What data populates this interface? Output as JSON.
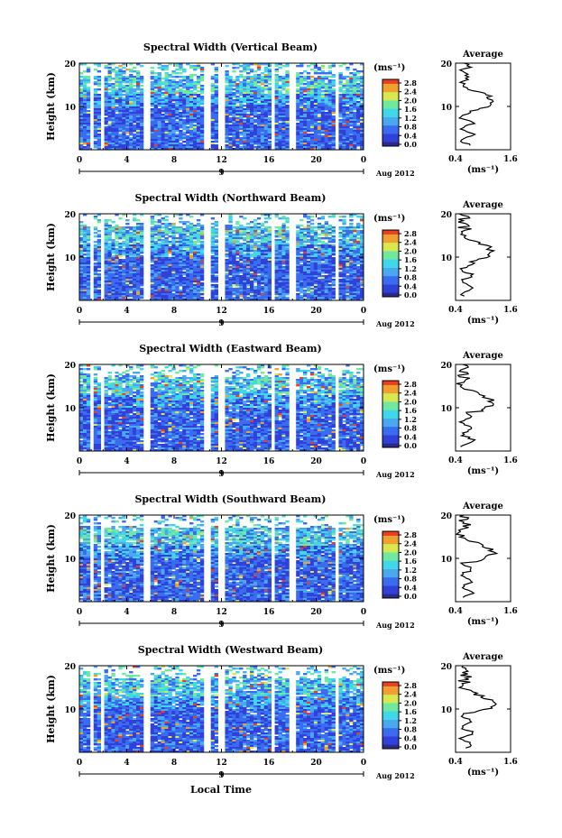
{
  "chart_data": [
    {
      "type": "heatmap",
      "title": "Spectral Width (Vertical Beam)",
      "beam": "vertical",
      "avg_title": "Average",
      "avg_xlabel": "(ms⁻¹)"
    },
    {
      "type": "heatmap",
      "title": "Spectral Width (Northward Beam)",
      "beam": "north",
      "avg_title": "Average",
      "avg_xlabel": "(ms⁻¹)"
    },
    {
      "type": "heatmap",
      "title": "Spectral Width (Eastward Beam)",
      "beam": "east",
      "avg_title": "Average",
      "avg_xlabel": "(ms⁻¹)"
    },
    {
      "type": "heatmap",
      "title": "Spectral Width (Southward Beam)",
      "beam": "south",
      "avg_title": "Average",
      "avg_xlabel": "(ms⁻¹)"
    },
    {
      "type": "heatmap",
      "title": "Spectral Width (Westward Beam)",
      "beam": "west",
      "avg_title": "Average",
      "avg_xlabel": "(ms⁻¹)"
    }
  ],
  "common": {
    "ylabel": "Height (km)",
    "y_ticks": [
      10,
      20
    ],
    "ylim": [
      0,
      20
    ],
    "x_ticks": [
      "0",
      "4",
      "8",
      "12",
      "16",
      "20",
      "0"
    ],
    "xlim": [
      0,
      24
    ],
    "date_mark": "9",
    "date_label": "Aug 2012",
    "colorbar_unit": "(ms⁻¹)",
    "colorbar_ticks": [
      "2.8",
      "2.4",
      "2.0",
      "1.6",
      "1.2",
      "0.8",
      "0.4",
      "0.0"
    ],
    "colorbar_range": [
      0,
      3.0
    ],
    "avg_x_ticks": [
      "0.4",
      "1.6"
    ],
    "avg_xlim": [
      0.4,
      1.6
    ],
    "avg_y_ticks": [
      10,
      20
    ],
    "xlabel": "Local Time",
    "data_gaps_hours": [
      [
        0.8,
        1.2
      ],
      [
        1.7,
        2.2
      ],
      [
        5.5,
        5.9
      ],
      [
        10.5,
        11.0
      ],
      [
        11.7,
        12.2
      ],
      [
        16.3,
        16.6
      ],
      [
        17.8,
        18.2
      ],
      [
        21.5,
        21.8
      ]
    ]
  },
  "colors": {
    "cmap": [
      "#2a2a8a",
      "#3040d8",
      "#3a6cf0",
      "#4aa8f0",
      "#40d8e8",
      "#70e8a0",
      "#d8e850",
      "#f0a030",
      "#e84020"
    ]
  }
}
